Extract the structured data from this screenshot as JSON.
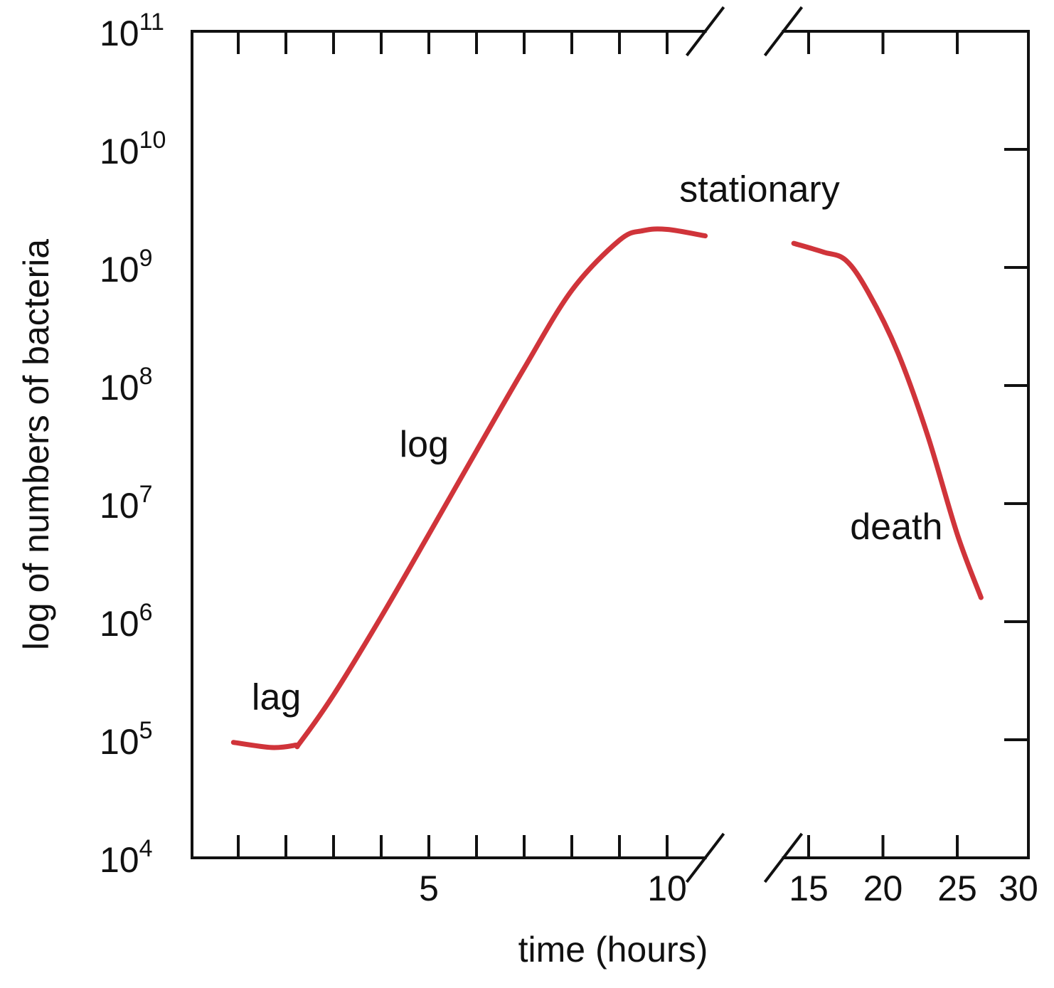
{
  "chart_data": {
    "type": "line",
    "xlabel": "time (hours)",
    "ylabel": "log of numbers of bacteria",
    "y_scale": "log",
    "ylim": [
      10000,
      100000000000
    ],
    "y_ticks": [
      {
        "base": "10",
        "exp": "4"
      },
      {
        "base": "10",
        "exp": "5"
      },
      {
        "base": "10",
        "exp": "6"
      },
      {
        "base": "10",
        "exp": "7"
      },
      {
        "base": "10",
        "exp": "8"
      },
      {
        "base": "10",
        "exp": "9"
      },
      {
        "base": "10",
        "exp": "10"
      },
      {
        "base": "10",
        "exp": "11"
      }
    ],
    "x_ticks": [
      "5",
      "10",
      "15",
      "20",
      "25",
      "30"
    ],
    "x_axis_break": "between 10 and 15 hours",
    "grid": false,
    "line_color": "#d0343a",
    "axis_color": "#111111",
    "series": [
      {
        "segment": "before-break",
        "points": [
          {
            "x": 0.9,
            "y": 95000
          },
          {
            "x": 1.7,
            "y": 86000
          },
          {
            "x": 2.2,
            "y": 90000
          },
          {
            "x": 2.3,
            "y": 95000
          },
          {
            "x": 3.0,
            "y": 240000
          },
          {
            "x": 4.0,
            "y": 1100000
          },
          {
            "x": 5.0,
            "y": 5500000
          },
          {
            "x": 6.0,
            "y": 28000000
          },
          {
            "x": 7.0,
            "y": 140000000
          },
          {
            "x": 8.0,
            "y": 640000000
          },
          {
            "x": 9.0,
            "y": 1700000000
          },
          {
            "x": 9.5,
            "y": 2050000000
          },
          {
            "x": 10.0,
            "y": 2100000000
          },
          {
            "x": 10.8,
            "y": 1850000000
          }
        ]
      },
      {
        "segment": "after-break",
        "points": [
          {
            "x": 14.0,
            "y": 1600000000
          },
          {
            "x": 16.0,
            "y": 1350000000
          },
          {
            "x": 17.5,
            "y": 1150000000
          },
          {
            "x": 19.0,
            "y": 620000000
          },
          {
            "x": 21.0,
            "y": 190000000
          },
          {
            "x": 23.0,
            "y": 38000000
          },
          {
            "x": 25.0,
            "y": 5500000
          },
          {
            "x": 26.6,
            "y": 1600000
          }
        ]
      }
    ],
    "annotations": [
      {
        "text": "lag",
        "x": 1.8,
        "y": 180000
      },
      {
        "text": "log",
        "x": 4.9,
        "y": 25000000
      },
      {
        "text": "stationary",
        "x": 11.7,
        "y": 3600000000
      },
      {
        "text": "death",
        "x": 20.9,
        "y": 5000000
      }
    ]
  }
}
